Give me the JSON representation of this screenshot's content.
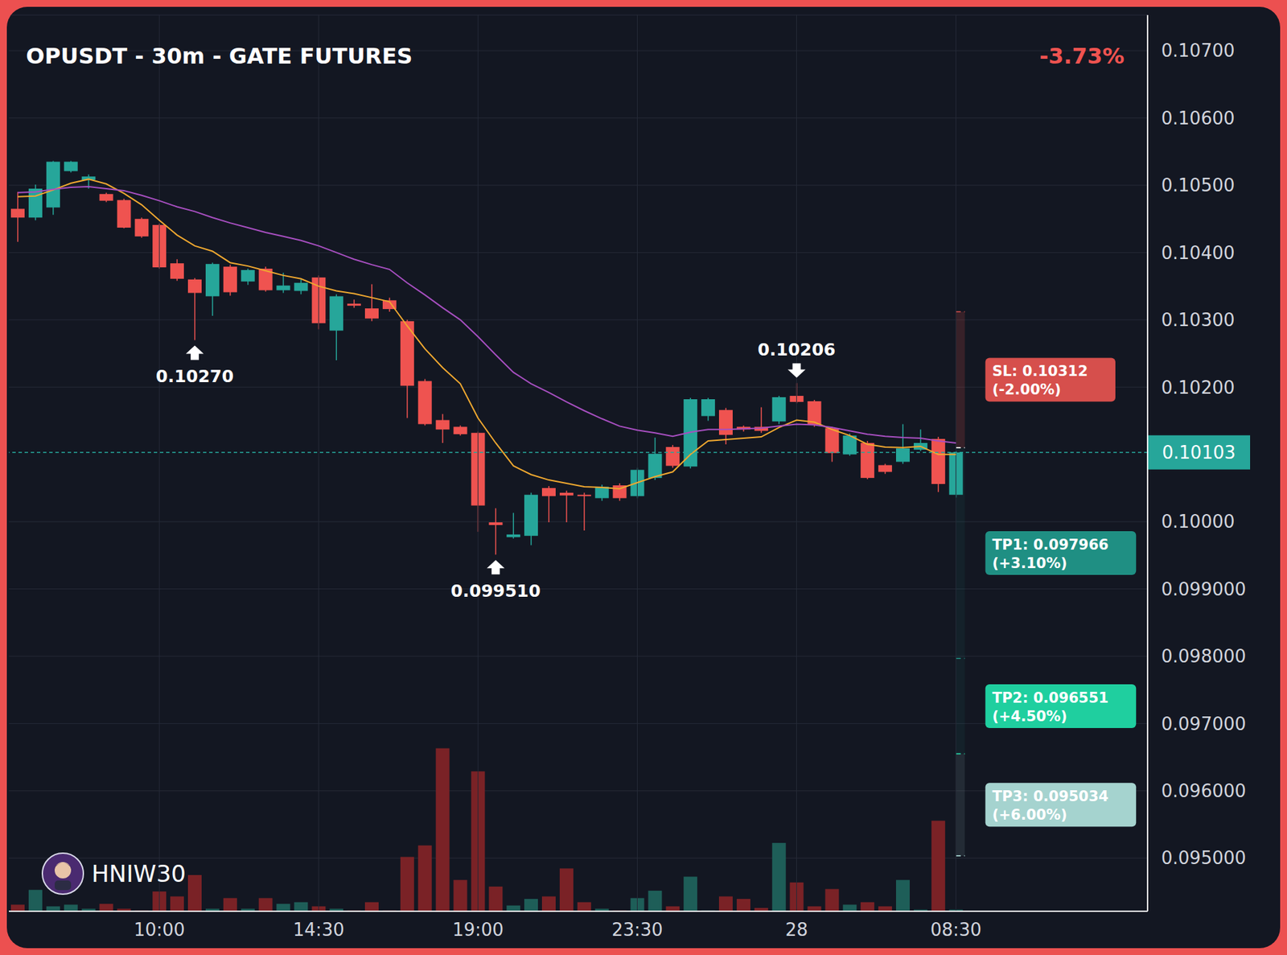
{
  "chart_data": {
    "type": "candlestick",
    "title": "OPUSDT - 30m - GATE FUTURES",
    "change_label": "-3.73%",
    "author": "HNIW30",
    "grid": true,
    "categories": [
      null,
      null,
      null,
      null,
      null,
      null,
      null,
      null,
      "10:00",
      null,
      null,
      null,
      null,
      null,
      null,
      null,
      null,
      "14:30",
      null,
      null,
      null,
      null,
      null,
      null,
      null,
      null,
      "19:00",
      null,
      null,
      null,
      null,
      null,
      null,
      null,
      null,
      "23:30",
      null,
      null,
      null,
      null,
      null,
      null,
      null,
      null,
      "28",
      null,
      null,
      null,
      null,
      null,
      null,
      null,
      null,
      "08:30"
    ],
    "open": [
      0.10465,
      0.10452,
      0.10467,
      0.10521,
      0.10508,
      0.10487,
      0.10478,
      0.1045,
      0.10441,
      0.10384,
      0.1036,
      0.10335,
      0.10379,
      0.10357,
      0.10376,
      0.10344,
      0.10343,
      0.10363,
      0.10284,
      0.10324,
      0.10317,
      0.10329,
      0.10298,
      0.10209,
      0.10151,
      0.10141,
      0.10132,
      0.09999,
      0.09977,
      0.09979,
      0.1005,
      0.10043,
      0.1004,
      0.10035,
      0.10054,
      0.10038,
      0.10065,
      0.10111,
      0.10082,
      0.10157,
      0.10166,
      0.10141,
      0.10141,
      0.10149,
      0.10187,
      0.10179,
      0.10139,
      0.101,
      0.10117,
      0.10084,
      0.10089,
      0.10107,
      0.10123,
      0.1004
    ],
    "high": [
      0.1049,
      0.10501,
      0.10536,
      0.10536,
      0.10516,
      0.10489,
      0.1048,
      0.10452,
      0.10443,
      0.1039,
      0.10362,
      0.10385,
      0.10382,
      0.10376,
      0.10379,
      0.1037,
      0.1036,
      0.10366,
      0.10338,
      0.1033,
      0.10353,
      0.10333,
      0.103,
      0.10212,
      0.1016,
      0.10143,
      0.10134,
      0.1002,
      0.10013,
      0.10043,
      0.10053,
      0.10046,
      0.10043,
      0.10055,
      0.10057,
      0.1008,
      0.10125,
      0.10114,
      0.10184,
      0.10184,
      0.10169,
      0.10143,
      0.1017,
      0.10187,
      0.10206,
      0.10181,
      0.10141,
      0.10131,
      0.1012,
      0.10086,
      0.10145,
      0.10137,
      0.10126,
      0.10105
    ],
    "low": [
      0.10416,
      0.10448,
      0.10456,
      0.10519,
      0.10495,
      0.10475,
      0.10436,
      0.10422,
      0.10376,
      0.10358,
      0.1027,
      0.10306,
      0.10336,
      0.10352,
      0.10342,
      0.1034,
      0.10338,
      0.10286,
      0.1024,
      0.10318,
      0.10298,
      0.10312,
      0.10154,
      0.10143,
      0.10117,
      0.10128,
      0.09985,
      0.09951,
      0.09975,
      0.09965,
      0.09999,
      0.09999,
      0.09987,
      0.10031,
      0.10031,
      0.10035,
      0.10062,
      0.1008,
      0.10079,
      0.1015,
      0.10115,
      0.10134,
      0.10132,
      0.10145,
      0.10176,
      0.10141,
      0.10089,
      0.10098,
      0.10063,
      0.10071,
      0.10086,
      0.10105,
      0.10044,
      0.10036
    ],
    "close": [
      0.10452,
      0.10495,
      0.10535,
      0.10535,
      0.10513,
      0.10477,
      0.10437,
      0.10424,
      0.10378,
      0.10361,
      0.1034,
      0.10383,
      0.10341,
      0.10374,
      0.10344,
      0.10351,
      0.10355,
      0.10295,
      0.10335,
      0.10321,
      0.10302,
      0.10316,
      0.10202,
      0.10145,
      0.10137,
      0.1013,
      0.10024,
      0.09995,
      0.09981,
      0.1004,
      0.10038,
      0.10039,
      0.10038,
      0.10052,
      0.10035,
      0.10077,
      0.10101,
      0.10083,
      0.10182,
      0.10182,
      0.10129,
      0.10137,
      0.10135,
      0.10185,
      0.10178,
      0.10144,
      0.10102,
      0.10128,
      0.10065,
      0.10074,
      0.10109,
      0.10117,
      0.10056,
      0.10103
    ],
    "volume": [
      8,
      26,
      6,
      8,
      3,
      9,
      3,
      1,
      24,
      18,
      44,
      3,
      16,
      3,
      16,
      9,
      11,
      6,
      3,
      1,
      11,
      1,
      66,
      80,
      198,
      38,
      170,
      30,
      7,
      15,
      18,
      52,
      11,
      3,
      1,
      16,
      25,
      6,
      42,
      1,
      18,
      15,
      4,
      83,
      35,
      6,
      27,
      8,
      11,
      6,
      38,
      2,
      110,
      2
    ],
    "series": [
      {
        "type": "line",
        "color": "#f0a830",
        "values": [
          0.10483,
          0.10484,
          0.10493,
          0.10503,
          0.10509,
          0.10502,
          0.10488,
          0.10471,
          0.10448,
          0.10426,
          0.1041,
          0.10402,
          0.10385,
          0.1038,
          0.10373,
          0.10366,
          0.10361,
          0.1035,
          0.10343,
          0.10339,
          0.10333,
          0.10327,
          0.10291,
          0.10257,
          0.10229,
          0.10205,
          0.10154,
          0.10117,
          0.10083,
          0.1007,
          0.10062,
          0.10057,
          0.10052,
          0.10051,
          0.10049,
          0.10058,
          0.10067,
          0.10074,
          0.101,
          0.1012,
          0.10122,
          0.10124,
          0.10126,
          0.1014,
          0.10151,
          0.10148,
          0.10137,
          0.10128,
          0.10115,
          0.10111,
          0.1011,
          0.10112,
          0.101,
          0.101
        ]
      },
      {
        "type": "line",
        "color": "#a74fc0",
        "values": [
          0.10489,
          0.1049,
          0.10494,
          0.10497,
          0.10498,
          0.10495,
          0.10492,
          0.10485,
          0.10477,
          0.10468,
          0.10461,
          0.10452,
          0.10444,
          0.10437,
          0.1043,
          0.10424,
          0.10418,
          0.1041,
          0.104,
          0.1039,
          0.10382,
          0.10375,
          0.10355,
          0.10337,
          0.10318,
          0.103,
          0.10275,
          0.10248,
          0.10222,
          0.10205,
          0.10192,
          0.10178,
          0.10165,
          0.10153,
          0.10142,
          0.10136,
          0.10132,
          0.10127,
          0.10133,
          0.10137,
          0.10137,
          0.10138,
          0.10139,
          0.10142,
          0.10145,
          0.10144,
          0.1014,
          0.10135,
          0.1013,
          0.10127,
          0.10125,
          0.10124,
          0.1012,
          0.10117
        ]
      }
    ],
    "ylim": [
      0.09421,
      0.10753
    ],
    "yticks": [
      {
        "value": 0.107,
        "label": "0.10700"
      },
      {
        "value": 0.106,
        "label": "0.10600"
      },
      {
        "value": 0.105,
        "label": "0.10500"
      },
      {
        "value": 0.104,
        "label": "0.10400"
      },
      {
        "value": 0.103,
        "label": "0.10300"
      },
      {
        "value": 0.102,
        "label": "0.10200"
      },
      {
        "value": 0.1,
        "label": "0.10000"
      },
      {
        "value": 0.099,
        "label": "0.099000"
      },
      {
        "value": 0.098,
        "label": "0.098000"
      },
      {
        "value": 0.097,
        "label": "0.097000"
      },
      {
        "value": 0.096,
        "label": "0.096000"
      },
      {
        "value": 0.095,
        "label": "0.095000"
      }
    ],
    "last_price": 0.10103,
    "entry": 0.1011,
    "levels": [
      {
        "name": "SL",
        "value": 0.10312,
        "label": "SL: 0.10312",
        "change_label": "(-2.00%)",
        "color": "#d64f4c"
      },
      {
        "name": "TP1",
        "value": 0.097966,
        "label": "TP1: 0.097966",
        "change_label": "(+3.10%)",
        "color": "#1f8f83"
      },
      {
        "name": "TP2",
        "value": 0.096551,
        "label": "TP2: 0.096551",
        "change_label": "(+4.50%)",
        "color": "#1fcf9f"
      },
      {
        "name": "TP3",
        "value": 0.095034,
        "label": "TP3: 0.095034",
        "change_label": "(+6.00%)",
        "color": "#a5d3cf"
      }
    ],
    "annotations": [
      {
        "x": 10,
        "value": 0.1027,
        "label": "0.10270"
      },
      {
        "x": 27,
        "value": 0.09951,
        "label": "0.099510"
      },
      {
        "x": 44,
        "value": 0.10206,
        "label": "0.10206"
      }
    ]
  }
}
